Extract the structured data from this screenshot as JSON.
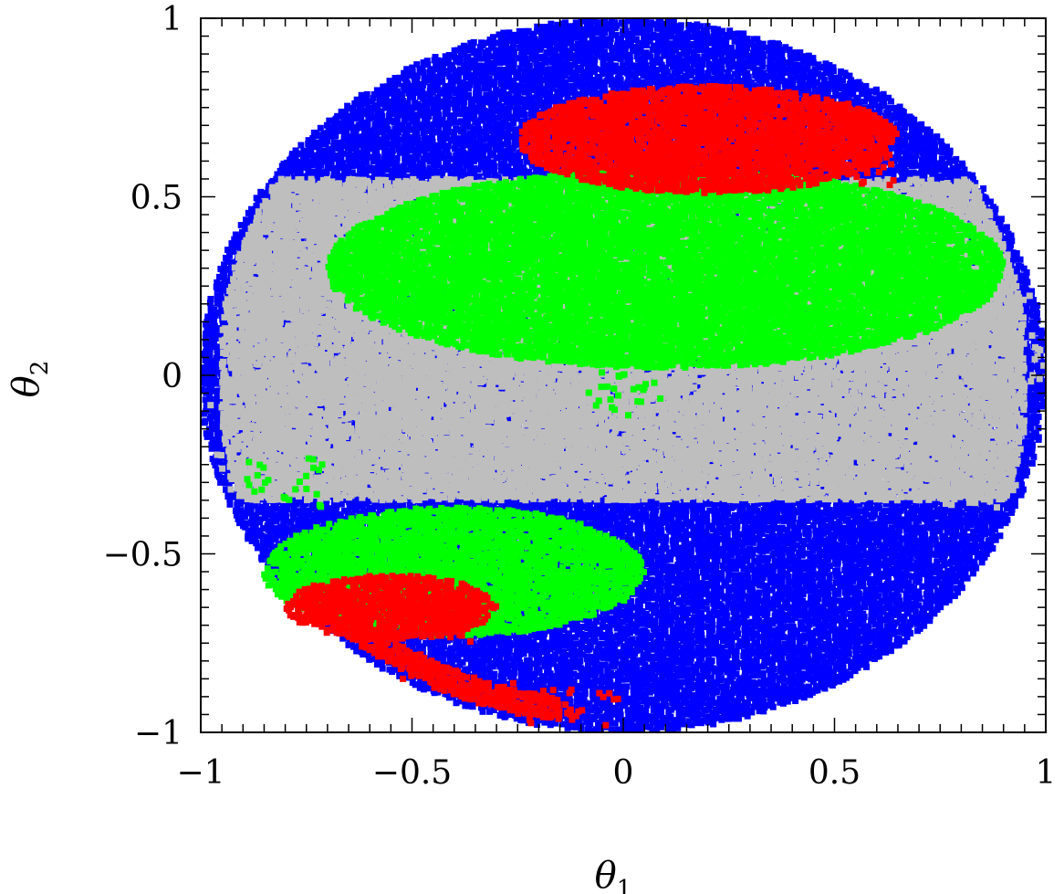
{
  "chart_data": {
    "type": "scatter",
    "xlabel": "θ",
    "xlabel_sub": "1",
    "ylabel": "θ",
    "ylabel_sub": "2",
    "xlim": [
      -1,
      1
    ],
    "ylim": [
      -1,
      1
    ],
    "grid": false,
    "x_ticks": [
      {
        "value": -1,
        "label": "−1"
      },
      {
        "value": -0.5,
        "label": "−0.5"
      },
      {
        "value": 0,
        "label": "0"
      },
      {
        "value": 0.5,
        "label": "0.5"
      },
      {
        "value": 1,
        "label": "1"
      }
    ],
    "y_ticks": [
      {
        "value": -1,
        "label": "−1"
      },
      {
        "value": -0.5,
        "label": "−0.5"
      },
      {
        "value": 0,
        "label": "0"
      },
      {
        "value": 0.5,
        "label": "0.5"
      },
      {
        "value": 1,
        "label": "1"
      }
    ],
    "series": [
      {
        "color": "#0000ff",
        "description_regions": [
          {
            "kind": "disk",
            "cx": 0.0,
            "cy": 0.0,
            "r": 1.0
          }
        ],
        "sample_points": [
          [
            -0.85,
            0.4
          ],
          [
            -0.75,
            0.55
          ],
          [
            -0.6,
            0.7
          ],
          [
            0.6,
            -0.5
          ],
          [
            0.8,
            -0.45
          ],
          [
            0.1,
            -0.85
          ],
          [
            0.5,
            -0.8
          ],
          [
            -0.2,
            -0.9
          ],
          [
            0.3,
            0.95
          ],
          [
            -0.2,
            0.93
          ]
        ]
      },
      {
        "color": "#bebebe",
        "description_regions": [
          {
            "kind": "band",
            "x": [
              -0.95,
              0.95
            ],
            "y": [
              -0.35,
              0.55
            ]
          }
        ],
        "sample_points": [
          [
            -0.9,
            -0.1
          ],
          [
            -0.8,
            0.3
          ],
          [
            0.9,
            0.2
          ],
          [
            0.85,
            -0.3
          ],
          [
            0.3,
            -0.1
          ],
          [
            -0.4,
            -0.2
          ],
          [
            0.95,
            0.05
          ],
          [
            -0.93,
            -0.25
          ]
        ]
      },
      {
        "color": "#00ff00",
        "description_regions": [
          {
            "kind": "ellipse",
            "cx": 0.1,
            "cy": 0.3,
            "rx": 0.8,
            "ry": 0.28
          },
          {
            "kind": "ellipse",
            "cx": -0.4,
            "cy": -0.55,
            "rx": 0.45,
            "ry": 0.18
          }
        ],
        "sample_points": [
          [
            -0.6,
            0.3
          ],
          [
            0.0,
            0.35
          ],
          [
            0.7,
            0.3
          ],
          [
            0.3,
            0.15
          ],
          [
            -0.5,
            -0.55
          ],
          [
            -0.2,
            -0.6
          ],
          [
            -0.8,
            -0.3
          ],
          [
            0.0,
            -0.05
          ]
        ]
      },
      {
        "color": "#ff0000",
        "description_regions": [
          {
            "kind": "ellipse",
            "cx": 0.2,
            "cy": 0.66,
            "rx": 0.45,
            "ry": 0.15
          },
          {
            "kind": "ellipse",
            "cx": -0.55,
            "cy": -0.65,
            "rx": 0.25,
            "ry": 0.09
          },
          {
            "kind": "arc-band",
            "x": [
              -0.7,
              -0.15
            ],
            "y": [
              -0.96,
              -0.78
            ]
          }
        ],
        "sample_points": [
          [
            0.0,
            0.7
          ],
          [
            0.4,
            0.65
          ],
          [
            0.55,
            0.6
          ],
          [
            -0.6,
            -0.65
          ],
          [
            -0.45,
            -0.68
          ],
          [
            -0.5,
            -0.88
          ],
          [
            -0.3,
            -0.93
          ],
          [
            -0.1,
            -0.95
          ]
        ]
      }
    ]
  }
}
